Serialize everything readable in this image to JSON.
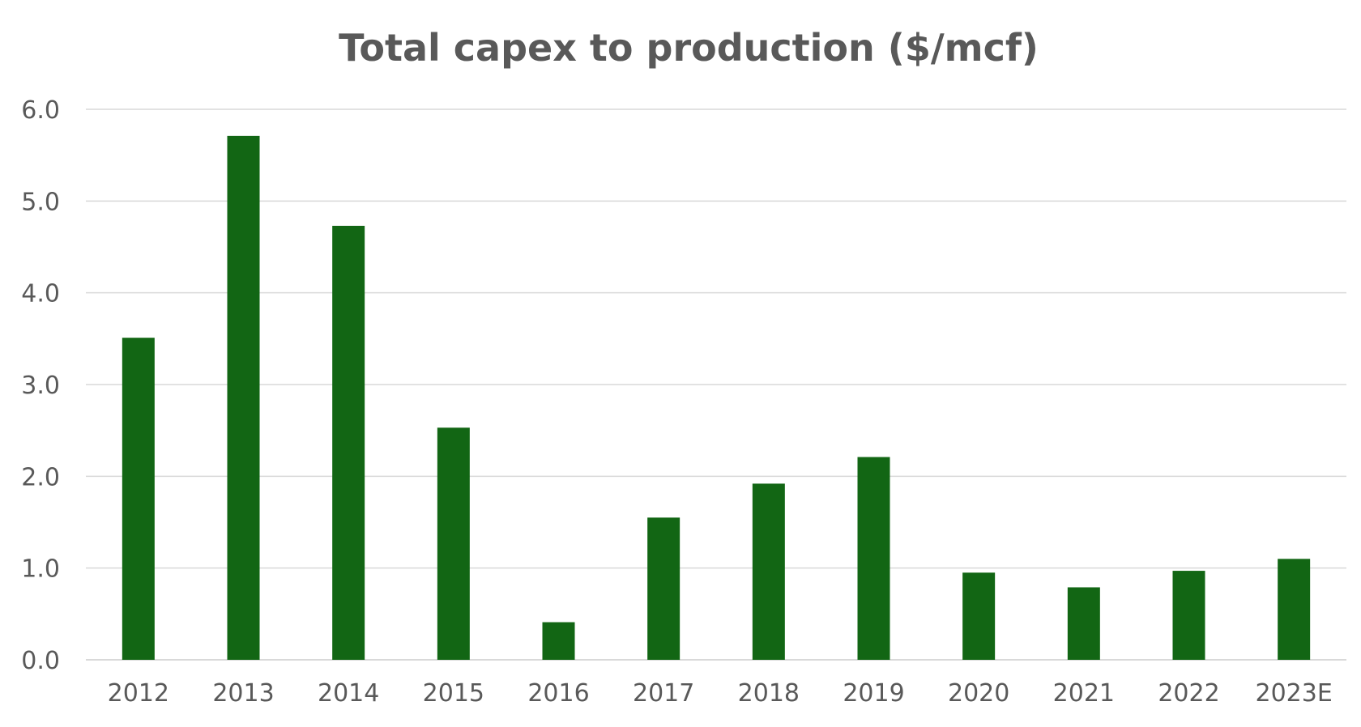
{
  "chart_data": {
    "type": "bar",
    "title": "Total capex to production ($/mcf)",
    "xlabel": "",
    "ylabel": "",
    "categories": [
      "2012",
      "2013",
      "2014",
      "2015",
      "2016",
      "2017",
      "2018",
      "2019",
      "2020",
      "2021",
      "2022",
      "2023E"
    ],
    "series": [
      {
        "values": [
          3.51,
          5.71,
          4.73,
          2.53,
          0.41,
          1.55,
          1.92,
          2.21,
          0.95,
          0.79,
          0.97,
          1.1
        ],
        "color": "#126614"
      }
    ],
    "ylim": [
      0,
      6
    ],
    "yticks": [
      "0.0",
      "1.0",
      "2.0",
      "3.0",
      "4.0",
      "5.0",
      "6.0"
    ],
    "grid": true,
    "legend": "none"
  }
}
